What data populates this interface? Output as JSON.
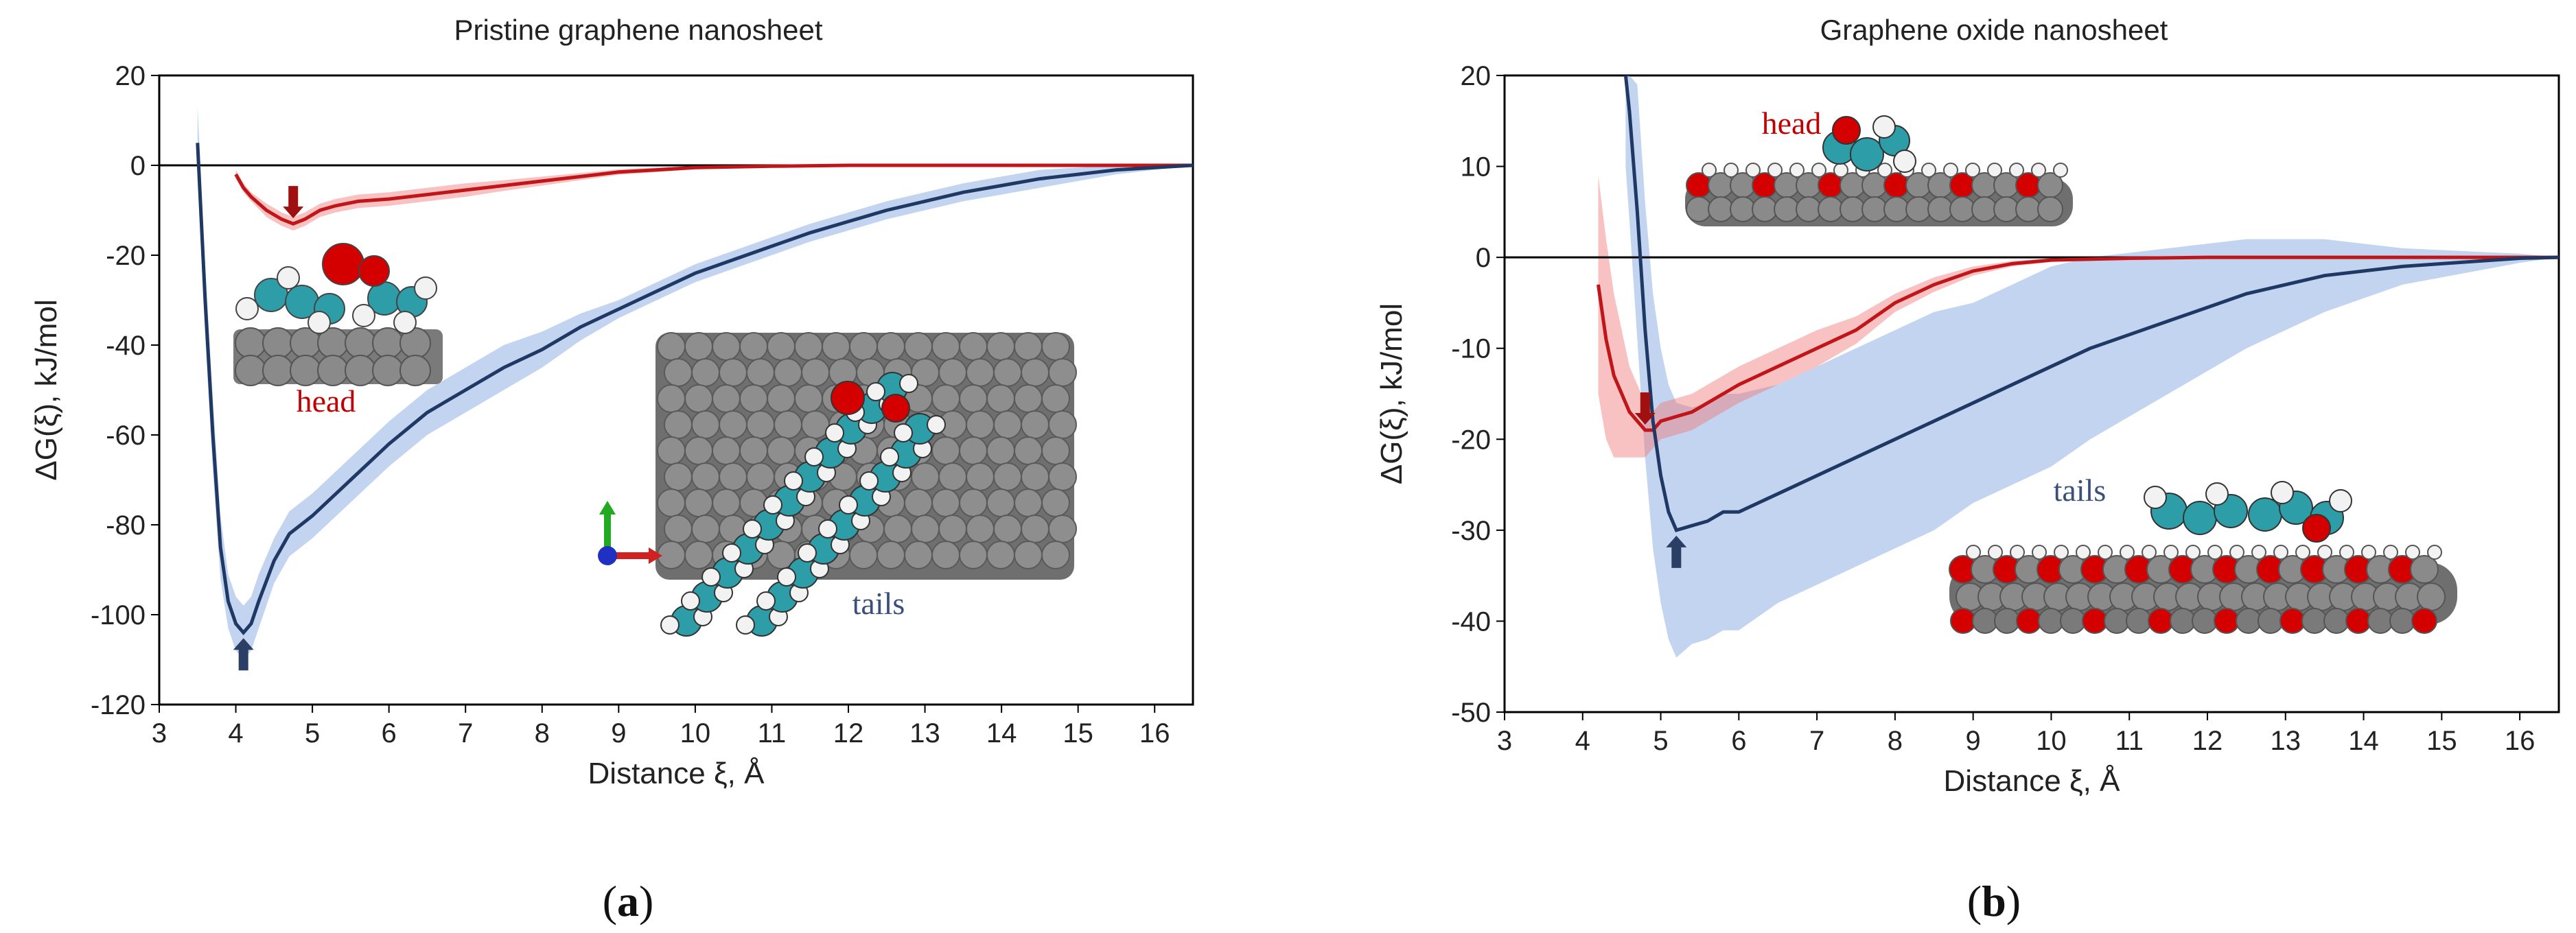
{
  "chart_data": [
    {
      "type": "line",
      "panel_label": "(a)",
      "panel_letter": "a",
      "title": "Pristine graphene nanosheet",
      "xlabel": "Distance ξ, Å",
      "ylabel": "ΔG(ξ), kJ/mol",
      "xlim": [
        3,
        16.5
      ],
      "ylim": [
        -120,
        20
      ],
      "xticks": [
        3,
        4,
        5,
        6,
        7,
        8,
        9,
        10,
        11,
        12,
        13,
        14,
        15,
        16
      ],
      "yticks": [
        20,
        0,
        -20,
        -40,
        -60,
        -80,
        -100,
        -120
      ],
      "annotations": [
        {
          "text": "head",
          "color": "#c00000"
        },
        {
          "text": "tails",
          "color": "#3a4f7a"
        }
      ],
      "series": [
        {
          "name": "head",
          "color": "#c0161a",
          "x": [
            4.0,
            4.1,
            4.2,
            4.4,
            4.6,
            4.75,
            4.9,
            5.1,
            5.3,
            5.6,
            6.0,
            6.5,
            7.0,
            7.5,
            8.0,
            8.5,
            9.0,
            9.5,
            10.0,
            11.0,
            12.0,
            13.0,
            14.0,
            15.0,
            16.0,
            16.5
          ],
          "y": [
            -2,
            -5,
            -7,
            -10,
            -12,
            -13,
            -12,
            -10,
            -9,
            -8,
            -7.5,
            -6.5,
            -5.5,
            -4.5,
            -3.5,
            -2.5,
            -1.5,
            -1,
            -0.5,
            -0.2,
            0,
            0,
            0,
            0,
            0,
            0
          ],
          "err": [
            1,
            1,
            1,
            1.5,
            1.5,
            1.5,
            1.5,
            1.5,
            1.5,
            1.5,
            1.5,
            1.5,
            1.5,
            1.2,
            1,
            0.8,
            0.6,
            0.5,
            0.4,
            0.2,
            0.1,
            0.1,
            0.1,
            0.1,
            0.1,
            0
          ]
        },
        {
          "name": "tails",
          "color": "#1f3864",
          "x": [
            3.5,
            3.6,
            3.7,
            3.8,
            3.9,
            4.0,
            4.1,
            4.2,
            4.3,
            4.5,
            4.7,
            5.0,
            5.5,
            6.0,
            6.5,
            7.0,
            7.5,
            8.0,
            8.5,
            9.0,
            9.5,
            10.0,
            10.5,
            11.0,
            11.5,
            12.0,
            12.5,
            13.0,
            13.5,
            14.0,
            14.5,
            15.0,
            15.5,
            16.0,
            16.5
          ],
          "y": [
            5,
            -30,
            -60,
            -85,
            -97,
            -102,
            -104,
            -102,
            -97,
            -88,
            -82,
            -78,
            -70,
            -62,
            -55,
            -50,
            -45,
            -41,
            -36,
            -32,
            -28,
            -24,
            -21,
            -18,
            -15,
            -12.5,
            -10,
            -8,
            -6,
            -4.5,
            -3,
            -2,
            -1,
            -0.5,
            0
          ],
          "err": [
            8,
            8,
            8,
            7,
            6,
            6,
            6,
            6,
            6,
            5,
            5,
            5,
            5,
            5,
            5,
            5,
            5,
            4,
            3,
            2,
            2,
            2,
            2,
            2,
            2,
            2,
            2,
            2,
            2,
            2,
            2,
            1.5,
            1,
            0.5,
            0
          ]
        }
      ]
    },
    {
      "type": "line",
      "panel_label": "(b)",
      "panel_letter": "b",
      "title": "Graphene oxide nanosheet",
      "xlabel": "Distance ξ, Å",
      "ylabel": "ΔG(ξ), kJ/mol",
      "xlim": [
        3,
        16.5
      ],
      "ylim": [
        -50,
        20
      ],
      "xticks": [
        3,
        4,
        5,
        6,
        7,
        8,
        9,
        10,
        11,
        12,
        13,
        14,
        15,
        16
      ],
      "yticks": [
        20,
        10,
        0,
        -10,
        -20,
        -30,
        -40,
        -50
      ],
      "annotations": [
        {
          "text": "head",
          "color": "#c00000"
        },
        {
          "text": "tails",
          "color": "#3a4f7a"
        }
      ],
      "series": [
        {
          "name": "head",
          "color": "#c0161a",
          "x": [
            4.2,
            4.3,
            4.4,
            4.5,
            4.6,
            4.7,
            4.8,
            4.9,
            5.0,
            5.2,
            5.4,
            5.6,
            5.8,
            6.0,
            6.5,
            7.0,
            7.5,
            8.0,
            8.5,
            9.0,
            9.5,
            10.0,
            11.0,
            12.0,
            13.0,
            14.0,
            15.0,
            16.0,
            16.5
          ],
          "y": [
            -3,
            -9,
            -13,
            -15,
            -17,
            -18,
            -19,
            -19,
            -18,
            -17.5,
            -17,
            -16,
            -15,
            -14,
            -12,
            -10,
            -8,
            -5,
            -3,
            -1.5,
            -0.7,
            -0.3,
            -0.1,
            0,
            0,
            0,
            0,
            0,
            0
          ],
          "err": [
            12,
            11,
            9,
            7,
            5,
            4,
            3,
            2,
            2,
            2,
            2,
            2,
            2,
            2,
            2,
            2,
            1.5,
            1,
            0.8,
            0.5,
            0.3,
            0.2,
            0.1,
            0.1,
            0,
            0,
            0,
            0,
            0
          ]
        },
        {
          "name": "tails",
          "color": "#1f3864",
          "x": [
            4.55,
            4.6,
            4.7,
            4.8,
            4.9,
            5.0,
            5.1,
            5.2,
            5.4,
            5.6,
            5.8,
            6.0,
            6.5,
            7.0,
            7.5,
            8.0,
            8.5,
            9.0,
            9.5,
            10.0,
            10.5,
            11.0,
            11.5,
            12.0,
            12.5,
            13.0,
            13.5,
            14.0,
            14.5,
            15.0,
            15.5,
            16.0,
            16.5
          ],
          "y": [
            20,
            16,
            5,
            -8,
            -18,
            -24,
            -28,
            -30,
            -29.5,
            -29,
            -28,
            -28,
            -26,
            -24,
            -22,
            -20,
            -18,
            -16,
            -14,
            -12,
            -10,
            -8.5,
            -7,
            -5.5,
            -4,
            -3,
            -2,
            -1.5,
            -1,
            -0.7,
            -0.4,
            -0.1,
            0
          ],
          "err": [
            10,
            12,
            14,
            14,
            14,
            14,
            14,
            14,
            13,
            13,
            13,
            13,
            12,
            12,
            12,
            12,
            12,
            11,
            11,
            11,
            10,
            9,
            8,
            7,
            6,
            5,
            4,
            3,
            2,
            1.5,
            1,
            0.5,
            0
          ]
        }
      ]
    }
  ]
}
